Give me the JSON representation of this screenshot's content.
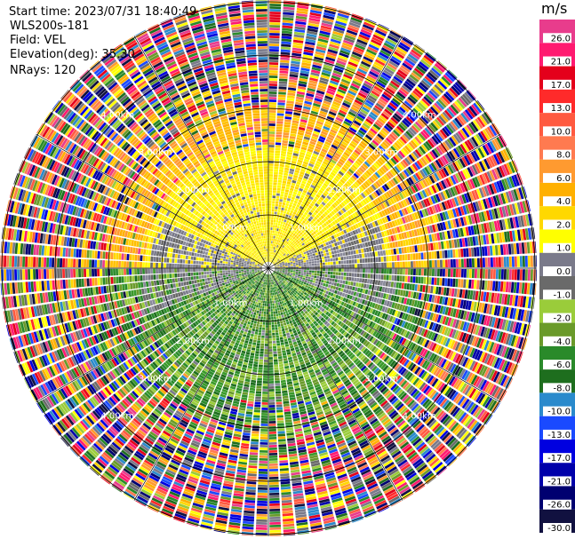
{
  "meta": {
    "start_time": "Start time: 2023/07/31 18:40:49",
    "instrument": "WLS200s-181",
    "field": "Field: VEL",
    "elevation": "Elevation(deg): 35.30",
    "nrays": "NRays: 120"
  },
  "colorbar": {
    "unit": "m/s",
    "labels": [
      "26.0",
      "21.0",
      "17.0",
      "13.0",
      "10.0",
      "8.0",
      "6.0",
      "4.0",
      "2.0",
      "1.0",
      "0.0",
      "-1.0",
      "-2.0",
      "-4.0",
      "-6.0",
      "-8.0",
      "-10.0",
      "-13.0",
      "-17.0",
      "-21.0",
      "-26.0",
      "-30.0"
    ],
    "colors": [
      "#e83c8c",
      "#ff1a70",
      "#e4001b",
      "#ff2a2a",
      "#ff5a40",
      "#ff7a50",
      "#ff9a30",
      "#ffb000",
      "#ffd800",
      "#ffff00",
      "#7a7a8a",
      "#6a6a6a",
      "#9acc3a",
      "#6a9a2a",
      "#2a8a2a",
      "#1e6e1e",
      "#2a8acc",
      "#1a4aff",
      "#0000e0",
      "#0000aa",
      "#000070",
      "#111140"
    ]
  },
  "rings": [
    "1.00km",
    "2.00km",
    "3.00km",
    "4.00km"
  ]
}
